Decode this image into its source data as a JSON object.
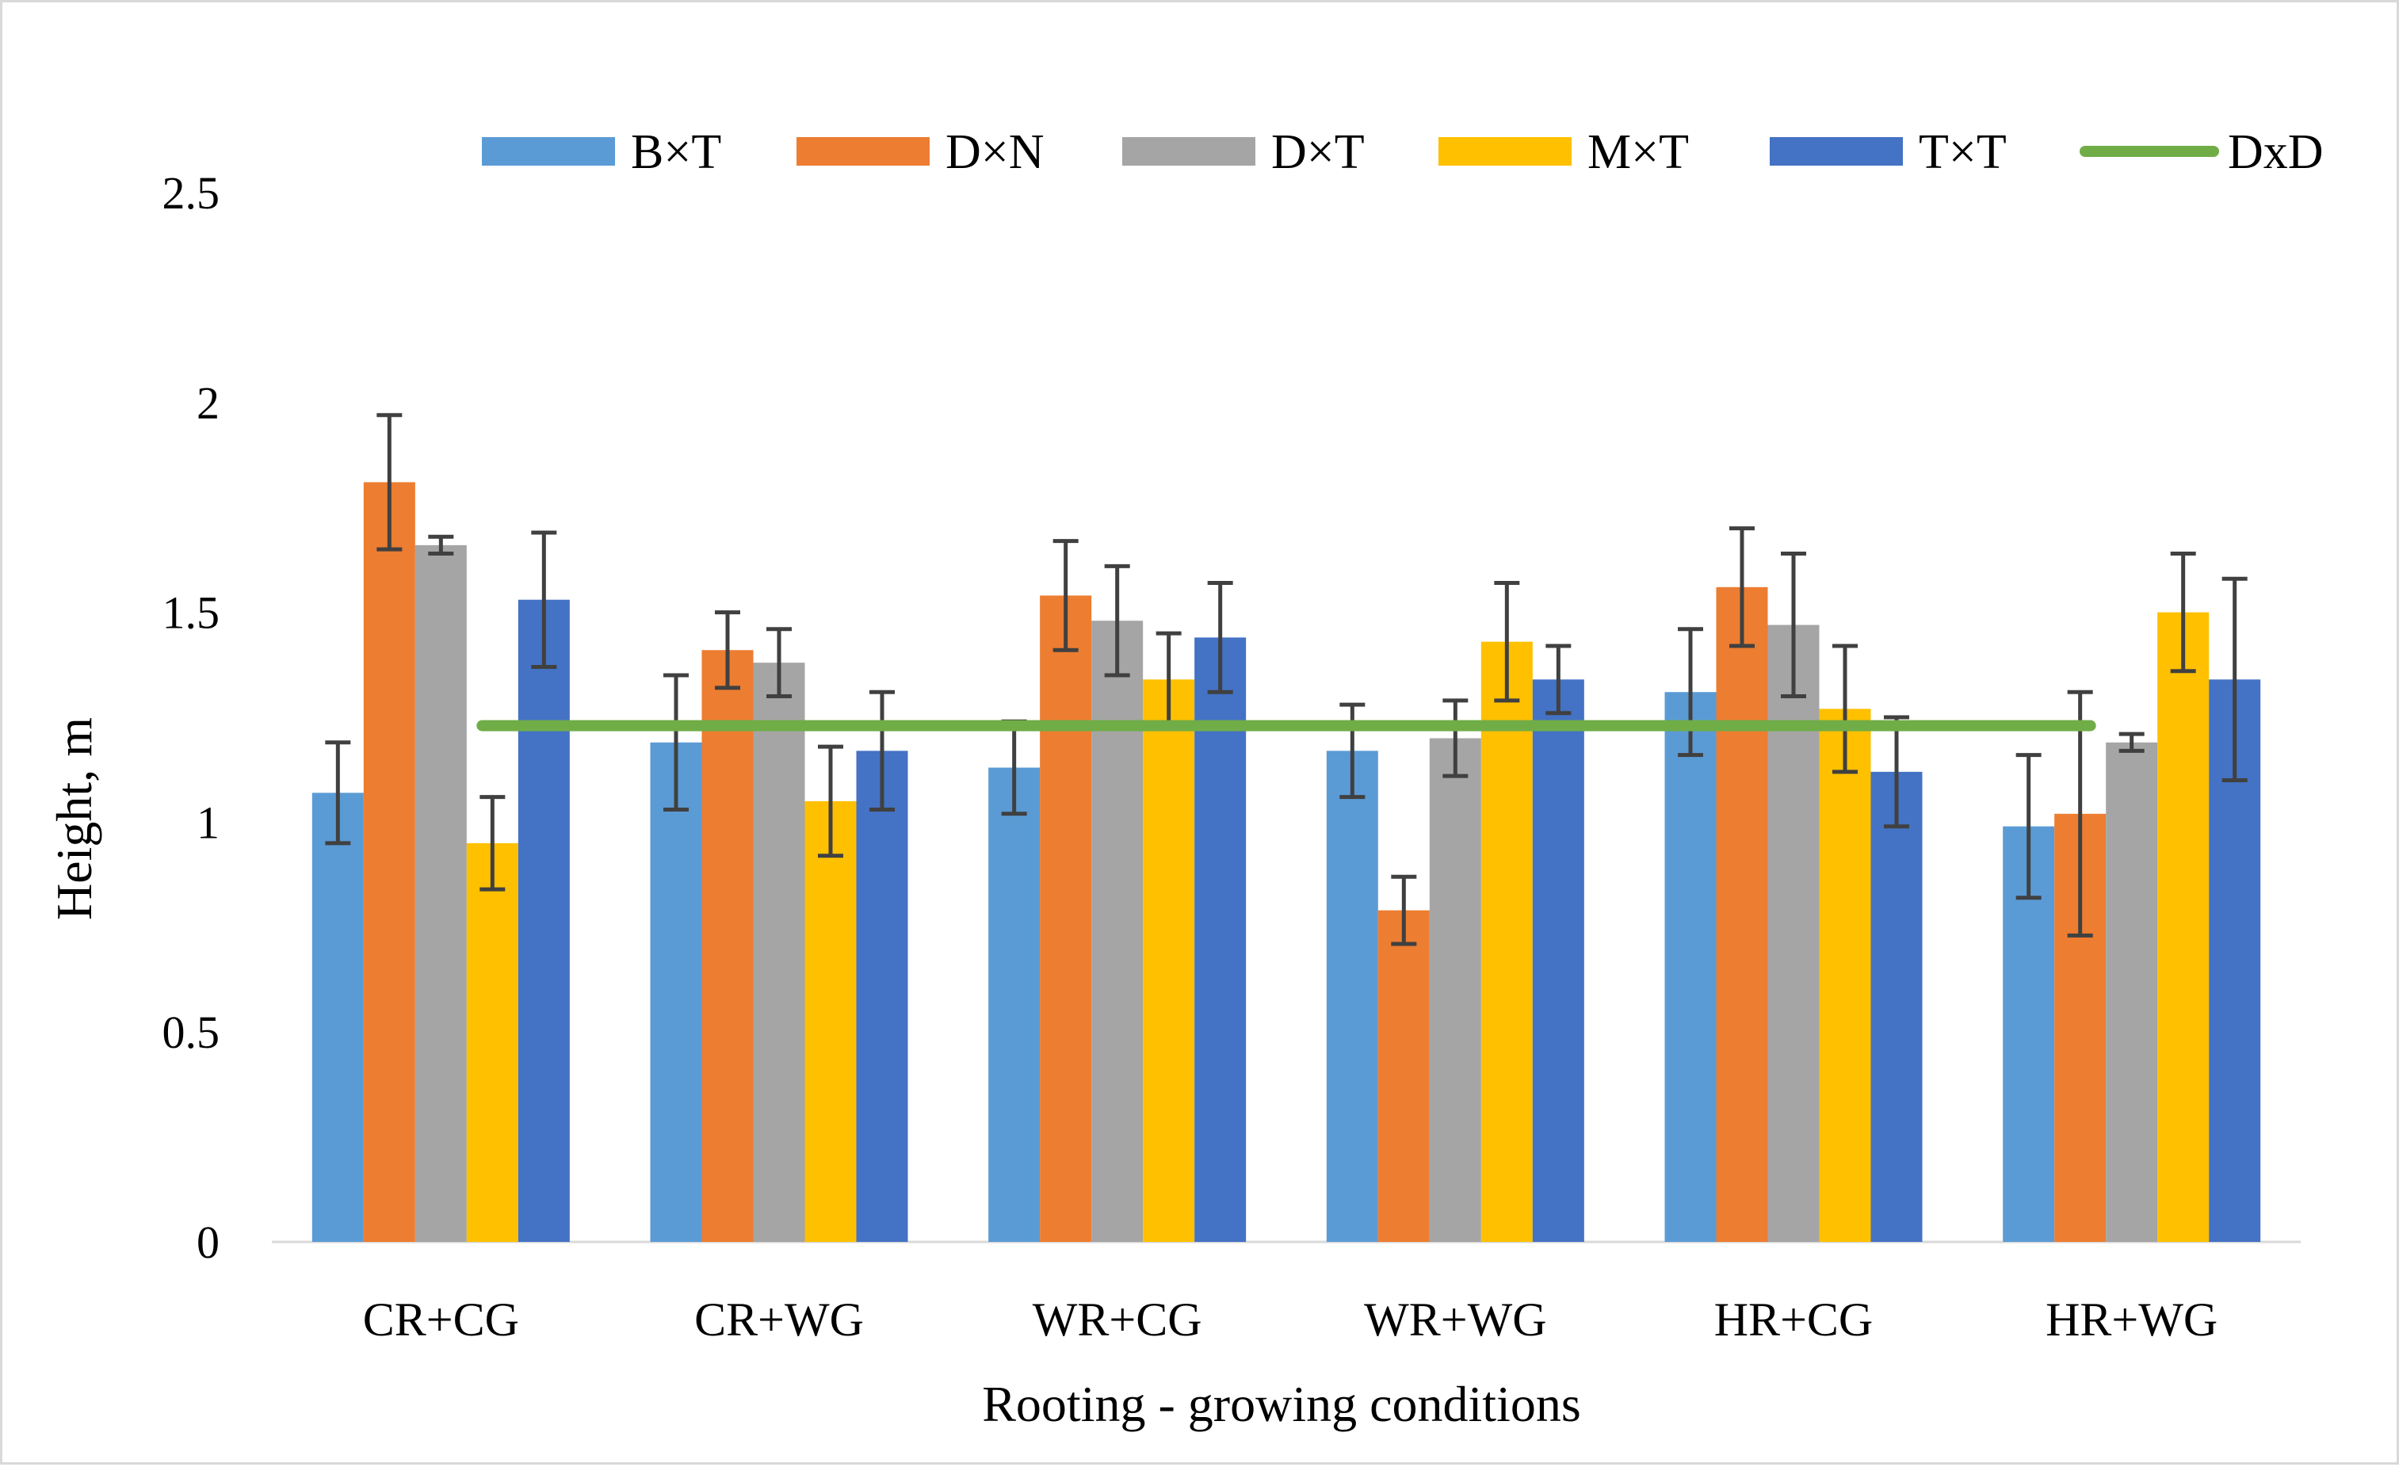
{
  "chart_data": {
    "type": "bar",
    "title": "",
    "xlabel": "Rooting - growing conditions",
    "ylabel": "Height, m",
    "ylim": [
      0,
      2.5
    ],
    "yticks": [
      0,
      0.5,
      1,
      1.5,
      2,
      2.5
    ],
    "ytick_labels": [
      "0",
      "0.5",
      "1",
      "1.5",
      "2",
      "2.5"
    ],
    "grid": false,
    "legend_position": "top",
    "categories": [
      "CR+CG",
      "CR+WG",
      "WR+CG",
      "WR+WG",
      "HR+CG",
      "HR+WG"
    ],
    "series": [
      {
        "name": "B×T",
        "color": "#5B9BD5",
        "values": [
          1.07,
          1.19,
          1.13,
          1.17,
          1.31,
          0.99
        ],
        "errors": [
          0.12,
          0.16,
          0.11,
          0.11,
          0.15,
          0.17
        ]
      },
      {
        "name": "D×N",
        "color": "#ED7D31",
        "values": [
          1.81,
          1.41,
          1.54,
          0.79,
          1.56,
          1.02
        ],
        "errors": [
          0.16,
          0.09,
          0.13,
          0.08,
          0.14,
          0.29
        ]
      },
      {
        "name": "D×T",
        "color": "#A5A5A5",
        "values": [
          1.66,
          1.38,
          1.48,
          1.2,
          1.47,
          1.19
        ],
        "errors": [
          0.02,
          0.08,
          0.13,
          0.09,
          0.17,
          0.02
        ]
      },
      {
        "name": "M×T",
        "color": "#FFC000",
        "values": [
          0.95,
          1.05,
          1.34,
          1.43,
          1.27,
          1.5
        ],
        "errors": [
          0.11,
          0.13,
          0.11,
          0.14,
          0.15,
          0.14
        ]
      },
      {
        "name": "T×T",
        "color": "#4472C4",
        "values": [
          1.53,
          1.17,
          1.44,
          1.34,
          1.12,
          1.34
        ],
        "errors": [
          0.16,
          0.14,
          0.13,
          0.08,
          0.13,
          0.24
        ]
      }
    ],
    "reference_line": {
      "name": "DxD",
      "color": "#70AD47",
      "value": 1.23
    }
  }
}
